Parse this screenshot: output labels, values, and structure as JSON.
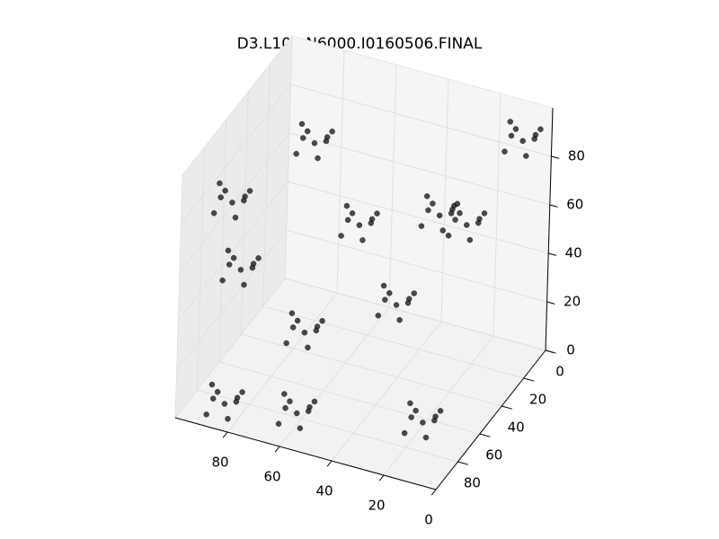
{
  "chart_data": {
    "type": "scatter3d",
    "title": "D3.L100.N6000.I0160506.FINAL",
    "color": "#000000",
    "grid": true,
    "xlim": [
      0,
      100
    ],
    "ylim": [
      0,
      100
    ],
    "zlim": [
      0,
      100
    ],
    "xticks": [
      0,
      20,
      40,
      60,
      80
    ],
    "yticks": [
      0,
      20,
      40,
      60,
      80
    ],
    "zticks": [
      0,
      20,
      40,
      60,
      80
    ],
    "x": [
      75,
      79,
      72,
      81,
      70,
      77,
      73,
      82,
      69,
      55,
      59,
      52,
      61,
      50,
      57,
      53,
      62,
      49,
      35,
      39,
      32,
      41,
      30,
      37,
      33,
      42,
      29,
      63,
      67,
      60,
      69,
      58,
      65,
      61,
      70,
      57,
      15,
      19,
      12,
      21,
      10,
      17,
      13,
      22,
      9,
      92,
      96,
      89,
      98,
      87,
      94,
      90,
      99,
      86,
      38,
      42,
      35,
      44,
      33,
      40,
      36,
      45,
      32,
      57,
      61,
      54,
      63,
      52,
      59,
      55,
      64,
      51,
      7,
      11,
      4,
      13,
      2,
      9,
      5,
      14,
      1,
      27,
      31,
      24,
      33,
      22,
      29,
      25,
      34,
      21,
      90,
      94,
      87,
      96,
      85,
      92,
      88,
      97,
      84,
      85,
      89,
      82,
      91,
      80,
      87,
      83,
      92,
      79
    ],
    "y": [
      38,
      35,
      42,
      40,
      34,
      44,
      32,
      33,
      41,
      43,
      40,
      47,
      45,
      39,
      49,
      37,
      38,
      46,
      17,
      14,
      21,
      19,
      13,
      23,
      11,
      12,
      20,
      72,
      69,
      76,
      74,
      68,
      78,
      66,
      67,
      75,
      77,
      74,
      81,
      79,
      73,
      83,
      71,
      72,
      80,
      72,
      69,
      76,
      74,
      68,
      78,
      66,
      67,
      75,
      48,
      45,
      52,
      50,
      44,
      54,
      42,
      43,
      51,
      92,
      89,
      96,
      94,
      88,
      98,
      86,
      87,
      95,
      10,
      7,
      14,
      12,
      6,
      16,
      4,
      5,
      13,
      11,
      8,
      15,
      13,
      7,
      17,
      5,
      6,
      14,
      67,
      64,
      71,
      69,
      63,
      73,
      61,
      62,
      70,
      91,
      88,
      95,
      93,
      87,
      97,
      85,
      86,
      94
    ],
    "z": [
      85,
      87,
      82,
      80,
      89,
      90,
      83,
      88,
      91,
      60,
      62,
      57,
      55,
      64,
      65,
      58,
      63,
      66,
      55,
      57,
      52,
      50,
      59,
      60,
      53,
      58,
      61,
      30,
      32,
      27,
      25,
      34,
      35,
      28,
      33,
      36,
      10,
      12,
      7,
      5,
      14,
      15,
      8,
      13,
      16,
      75,
      77,
      72,
      70,
      79,
      80,
      73,
      78,
      81,
      35,
      37,
      32,
      30,
      39,
      40,
      33,
      38,
      41,
      10,
      12,
      7,
      5,
      14,
      15,
      8,
      13,
      16,
      90,
      92,
      87,
      85,
      94,
      95,
      88,
      93,
      96,
      50,
      52,
      47,
      45,
      54,
      55,
      48,
      53,
      56,
      45,
      47,
      42,
      40,
      49,
      50,
      43,
      48,
      51,
      5,
      7,
      2,
      0,
      9,
      10,
      3,
      8,
      11
    ]
  }
}
